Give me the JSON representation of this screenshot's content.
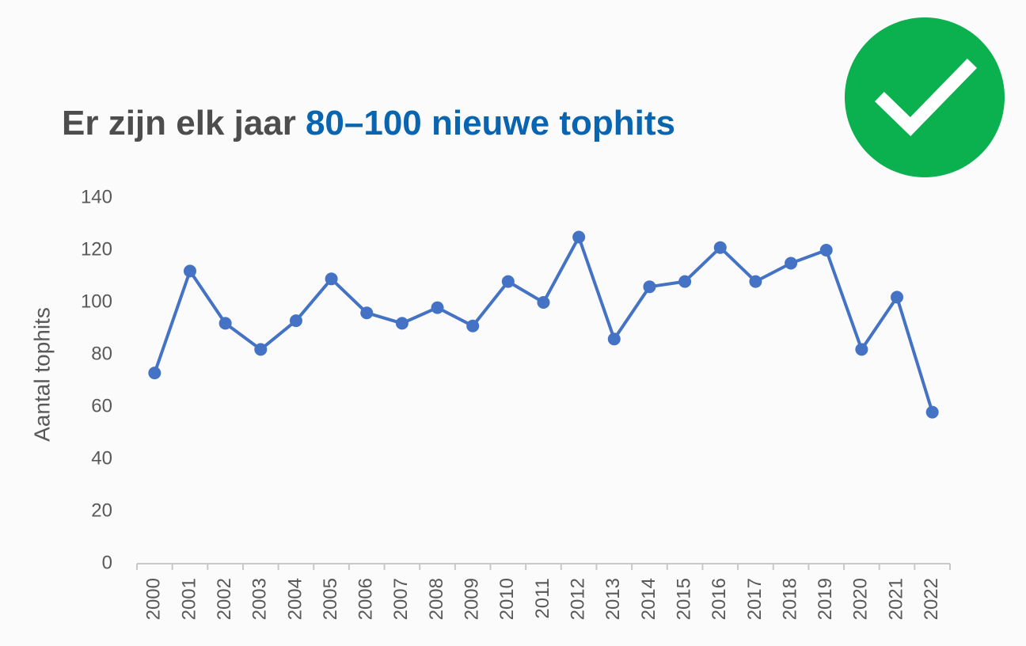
{
  "chart_data": {
    "type": "line",
    "title": "Er zijn elk jaar",
    "title_highlight": "80–100 nieuwe tophits",
    "y_label": "Aantal tophits",
    "categories": [
      "2000",
      "2001",
      "2002",
      "2003",
      "2004",
      "2005",
      "2006",
      "2007",
      "2008",
      "2009",
      "2010",
      "2011",
      "2012",
      "2013",
      "2014",
      "2015",
      "2016",
      "2017",
      "2018",
      "2019",
      "2020",
      "2021",
      "2022"
    ],
    "series": [
      {
        "name": "Aantal tophits",
        "color": "#4472c4",
        "values": [
          73,
          112,
          92,
          82,
          93,
          109,
          96,
          92,
          98,
          91,
          108,
          100,
          125,
          86,
          106,
          108,
          121,
          108,
          115,
          120,
          82,
          102,
          58
        ]
      }
    ],
    "ylim": [
      0,
      140
    ],
    "yticks": [
      0,
      20,
      40,
      60,
      80,
      100,
      120,
      140
    ],
    "grid": false
  }
}
